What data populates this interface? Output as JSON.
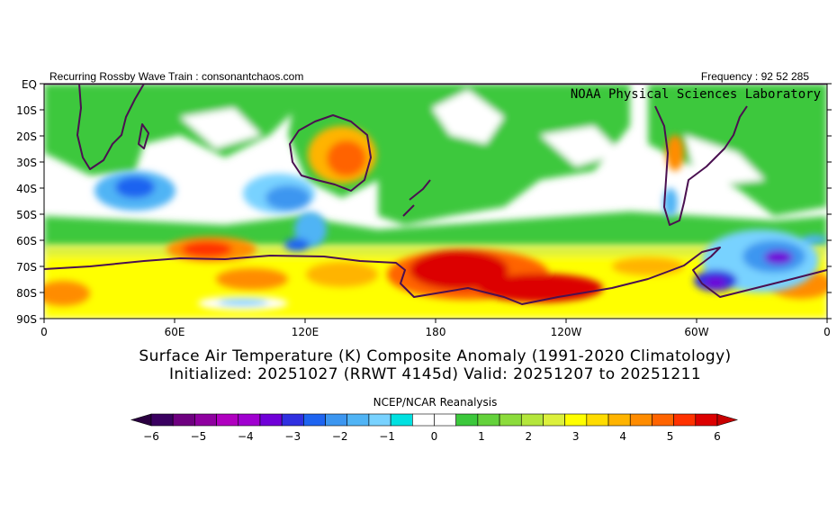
{
  "header": {
    "left_text": "Recurring Rossby Wave Train : consonantchaos.com",
    "right_text": "Frequency : 92 52 285",
    "watermark": "NOAA Physical Sciences Laboratory"
  },
  "axes": {
    "y_ticks": [
      "EQ",
      "10S",
      "20S",
      "30S",
      "40S",
      "50S",
      "60S",
      "70S",
      "80S",
      "90S"
    ],
    "x_ticks": [
      "0",
      "60E",
      "120E",
      "180",
      "120W",
      "60W",
      "0"
    ]
  },
  "title": {
    "line1": "Surface Air Temperature (K) Composite Anomaly (1991-2020 Climatology)",
    "line2": "Initialized: 20251027 (RRWT 4145d) Valid: 20251207 to 20251211"
  },
  "source": "NCEP/NCAR Reanalysis",
  "colorbar": {
    "tick_labels": [
      "-6",
      "-5",
      "-4",
      "-3",
      "-2",
      "-1",
      "0",
      "1",
      "2",
      "3",
      "4",
      "5",
      "6"
    ],
    "colors": [
      "#3a0060",
      "#6e0080",
      "#8f00a0",
      "#b000c0",
      "#a000d0",
      "#7000d8",
      "#3030e0",
      "#1e64f0",
      "#3c96f0",
      "#50b4f5",
      "#78d2ff",
      "#00e1e1",
      "#ffffff",
      "#ffffff",
      "#3cc83c",
      "#64d23c",
      "#8cdc3c",
      "#b4e63c",
      "#dcf03c",
      "#ffff00",
      "#ffdc00",
      "#ffb400",
      "#ff8c00",
      "#ff6400",
      "#ff3200",
      "#dc0000"
    ]
  },
  "colors": {
    "land_outline": "#4a1050",
    "equator_line": "#6a2a70"
  }
}
